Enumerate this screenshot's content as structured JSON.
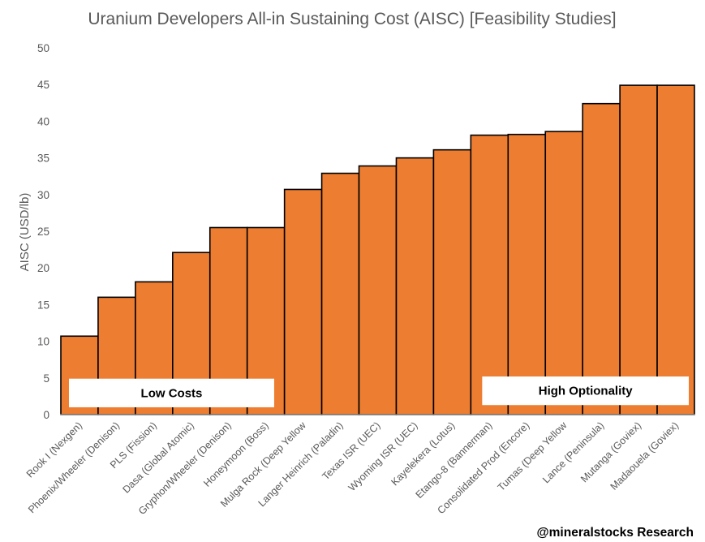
{
  "chart_data": {
    "type": "bar",
    "title": "Uranium Developers All-in Sustaining Cost (AISC) [Feasibility Studies]",
    "xlabel": "",
    "ylabel": "AISC (USD/lb)",
    "ylim": [
      0,
      50
    ],
    "yticks": [
      0,
      5,
      10,
      15,
      20,
      25,
      30,
      35,
      40,
      45,
      50
    ],
    "grid": false,
    "legend": "none",
    "categories": [
      "Rook I (Nexgen)",
      "Phoenix/Wheeler (Denison)",
      "PLS (Fission)",
      "Dasa (Global Atomic)",
      "Gryphon/Wheeler (Denison)",
      "Honeymoon (Boss)",
      "Mulga Rock (Deep Yellow",
      "Langer Heinrich (Paladin)",
      "Texas ISR (UEC)",
      "Wyoming ISR (UEC)",
      "Kayelekera (Lotus)",
      "Etango-8 (Bannerman)",
      "Consolidated Prod (Encore)",
      "Tumas (Deep Yellow",
      "Lance (Peninsula)",
      "Mutanga (Goviex)",
      "Madaouela (Goviex)"
    ],
    "values": [
      10.7,
      16.0,
      18.1,
      22.1,
      25.5,
      25.5,
      30.7,
      32.9,
      33.9,
      35.0,
      36.1,
      38.1,
      38.2,
      38.6,
      42.4,
      44.9,
      44.9
    ],
    "annotations": [
      {
        "text": "Low Costs",
        "x_range": [
          "Rook I (Nexgen)",
          "Gryphon/Wheeler (Denison)"
        ],
        "y_range": [
          1.0,
          4.9
        ]
      },
      {
        "text": "High Optionality",
        "x_range": [
          "Etango-8 (Bannerman)",
          "Madaouela (Goviex)"
        ],
        "y_range": [
          1.3,
          5.2
        ]
      }
    ],
    "source": "@mineralstocks Research"
  },
  "colors": {
    "bar_fill": "#ed7d31",
    "bar_stroke": "#000000",
    "axis": "#bfbfbf",
    "text": "#595959"
  }
}
